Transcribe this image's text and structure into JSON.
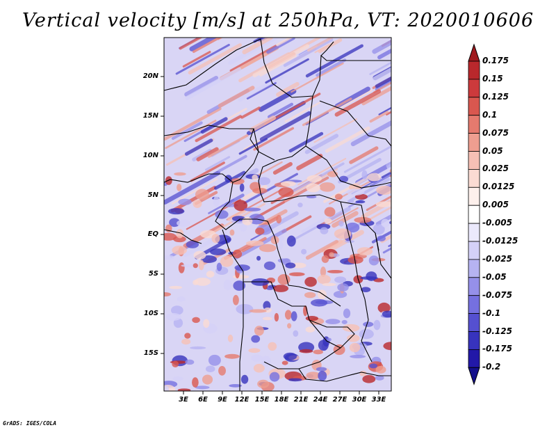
{
  "title": "Vertical velocity [m/s] at 250hPa, VT: 2020010606",
  "credit": "GrADS: IGES/COLA",
  "map": {
    "lat_labels": [
      "20N",
      "15N",
      "10N",
      "5N",
      "EQ",
      "5S",
      "10S",
      "15S"
    ],
    "lon_labels": [
      "3E",
      "6E",
      "9E",
      "12E",
      "15E",
      "18E",
      "21E",
      "24E",
      "27E",
      "30E",
      "33E"
    ]
  },
  "colorbar": {
    "levels": [
      "0.175",
      "0.15",
      "0.125",
      "0.1",
      "0.075",
      "0.05",
      "0.025",
      "0.0125",
      "0.005",
      "-0.005",
      "-0.0125",
      "-0.025",
      "-0.05",
      "-0.075",
      "-0.1",
      "-0.125",
      "-0.175",
      "-0.2"
    ],
    "colors": [
      "#a01a1e",
      "#b9282c",
      "#cc3a3c",
      "#d9574f",
      "#e57a6e",
      "#ee9e90",
      "#f6c0b5",
      "#fadbd3",
      "#fdf0ec",
      "#ffffff",
      "#ebe9fc",
      "#d4d1f8",
      "#b6b3f2",
      "#9590ea",
      "#7570e0",
      "#5550d0",
      "#3733bd",
      "#2218a8",
      "#14108c"
    ]
  }
}
